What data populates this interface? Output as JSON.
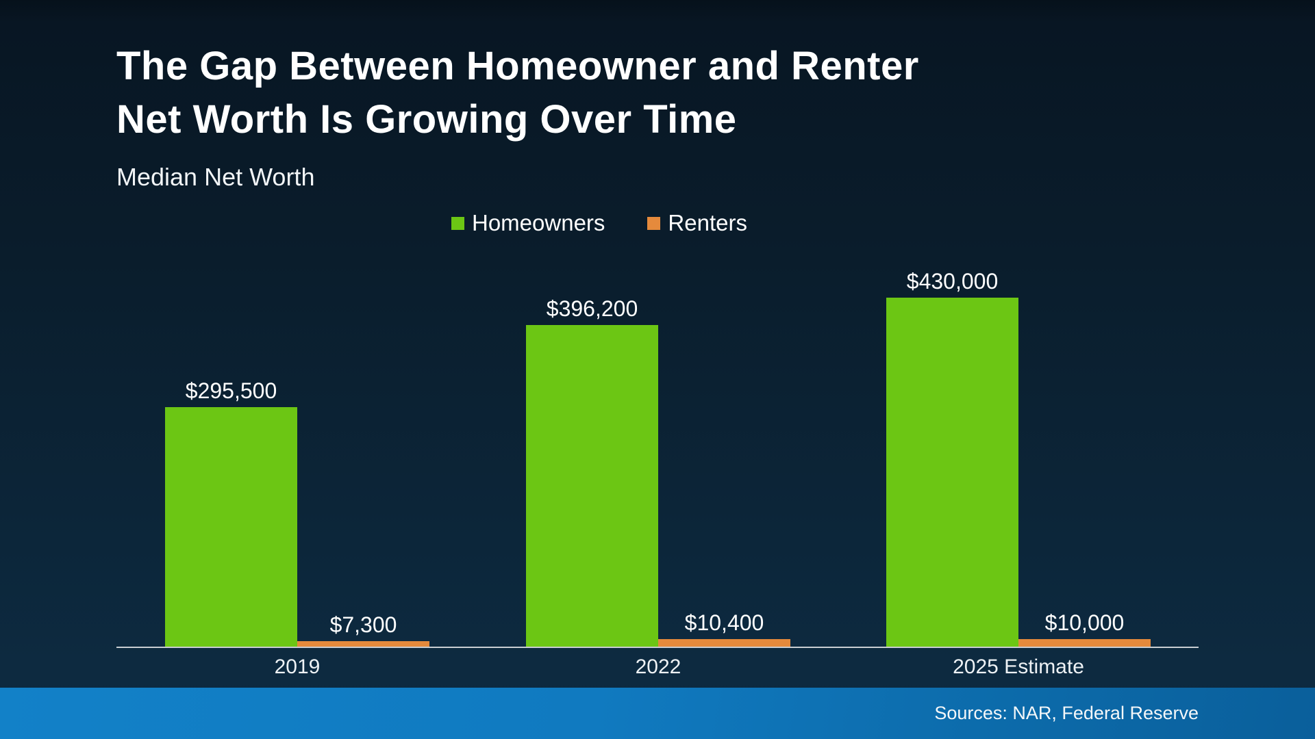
{
  "slide": {
    "title_line1": "The Gap Between Homeowner and Renter",
    "title_line2": "Net Worth Is Growing Over Time",
    "subtitle": "Median Net Worth",
    "sources": "Sources: NAR, Federal Reserve"
  },
  "colors": {
    "background_top": "#081623",
    "background_bottom": "#0d2a40",
    "homeowners_green": "#6cc614",
    "renters_orange": "#e58a3c",
    "axis_line": "#c9ced3",
    "footer_blue_left": "#1281c8",
    "footer_blue_right": "#0a5f9b",
    "text": "#ffffff"
  },
  "chart_data": {
    "type": "bar",
    "title": "The Gap Between Homeowner and Renter Net Worth Is Growing Over Time",
    "subtitle": "Median Net Worth",
    "categories": [
      "2019",
      "2022",
      "2025 Estimate"
    ],
    "series": [
      {
        "name": "Homeowners",
        "color": "#6cc614",
        "values": [
          295500,
          396200,
          430000
        ],
        "labels": [
          "$295,500",
          "$396,200",
          "$430,000"
        ]
      },
      {
        "name": "Renters",
        "color": "#e58a3c",
        "values": [
          7300,
          10400,
          10000
        ],
        "labels": [
          "$7,300",
          "$10,400",
          "$10,000"
        ]
      }
    ],
    "ylim": [
      0,
      445000
    ],
    "grid": false,
    "yaxis_visible": false,
    "legend_position": "top-center",
    "value_labels": true,
    "footnote": "Sources: NAR, Federal Reserve"
  }
}
